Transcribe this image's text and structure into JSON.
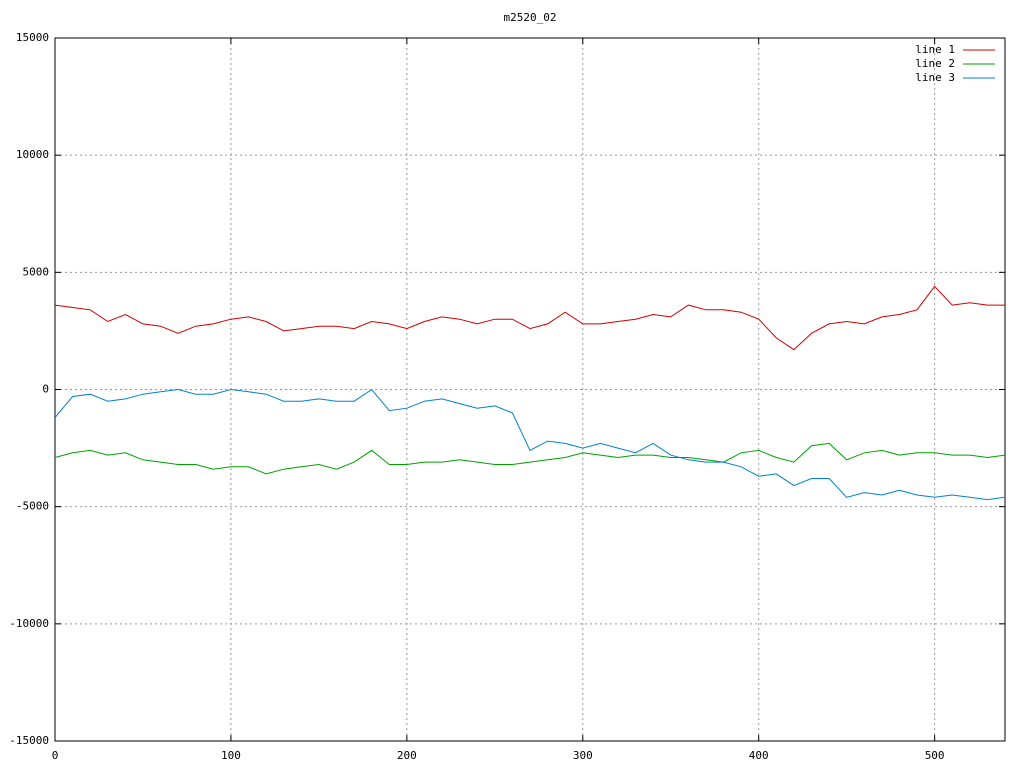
{
  "chart_data": {
    "type": "line",
    "title": "m2520_02",
    "x": [
      0,
      10,
      20,
      30,
      40,
      50,
      60,
      70,
      80,
      90,
      100,
      110,
      120,
      130,
      140,
      150,
      160,
      170,
      180,
      190,
      200,
      210,
      220,
      230,
      240,
      250,
      260,
      270,
      280,
      290,
      300,
      310,
      320,
      330,
      340,
      350,
      360,
      370,
      380,
      390,
      400,
      410,
      420,
      430,
      440,
      450,
      460,
      470,
      480,
      490,
      500,
      510,
      520,
      530,
      540
    ],
    "series": [
      {
        "name": "line 1",
        "color": "#d00000",
        "values": [
          3600,
          3500,
          3400,
          2900,
          3200,
          2800,
          2700,
          2400,
          2700,
          2800,
          3000,
          3100,
          2900,
          2500,
          2600,
          2700,
          2700,
          2600,
          2900,
          2800,
          2600,
          2900,
          3100,
          3000,
          2800,
          3000,
          3000,
          2600,
          2800,
          3300,
          2800,
          2800,
          2900,
          3000,
          3200,
          3100,
          3600,
          3400,
          3400,
          3300,
          3000,
          2200,
          1700,
          2400,
          2800,
          2900,
          2800,
          3100,
          3200,
          3400,
          4400,
          3600,
          3700,
          3600,
          3600
        ]
      },
      {
        "name": "line 2",
        "color": "#00a000",
        "values": [
          -2900,
          -2700,
          -2600,
          -2800,
          -2700,
          -3000,
          -3100,
          -3200,
          -3200,
          -3400,
          -3300,
          -3300,
          -3600,
          -3400,
          -3300,
          -3200,
          -3400,
          -3100,
          -2600,
          -3200,
          -3200,
          -3100,
          -3100,
          -3000,
          -3100,
          -3200,
          -3200,
          -3100,
          -3000,
          -2900,
          -2700,
          -2800,
          -2900,
          -2800,
          -2800,
          -2900,
          -2900,
          -3000,
          -3100,
          -2700,
          -2600,
          -2900,
          -3100,
          -2400,
          -2300,
          -3000,
          -2700,
          -2600,
          -2800,
          -2700,
          -2700,
          -2800,
          -2800,
          -2900,
          -2800
        ]
      },
      {
        "name": "line 3",
        "color": "#0080d0",
        "values": [
          -1200,
          -300,
          -200,
          -500,
          -400,
          -200,
          -100,
          0,
          -200,
          -200,
          0,
          -100,
          -200,
          -500,
          -500,
          -400,
          -500,
          -500,
          0,
          -900,
          -800,
          -500,
          -400,
          -600,
          -800,
          -700,
          -1000,
          -2600,
          -2200,
          -2300,
          -2500,
          -2300,
          -2500,
          -2700,
          -2300,
          -2800,
          -3000,
          -3100,
          -3100,
          -3300,
          -3700,
          -3600,
          -4100,
          -3800,
          -3800,
          -4600,
          -4400,
          -4500,
          -4300,
          -4500,
          -4600,
          -4500,
          -4600,
          -4700,
          -4600
        ]
      }
    ],
    "xlim": [
      0,
      540
    ],
    "xticks": [
      0,
      100,
      200,
      300,
      400,
      500
    ],
    "ylim": [
      -15000,
      15000
    ],
    "yticks": [
      -15000,
      -10000,
      -5000,
      0,
      5000,
      10000,
      15000
    ],
    "grid": true,
    "legend": "top-right"
  }
}
